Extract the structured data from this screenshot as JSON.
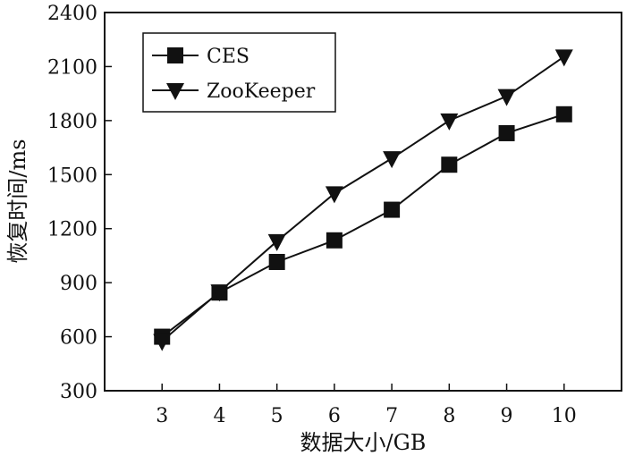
{
  "chart_data": {
    "type": "line",
    "xlabel": "数据大小/GB",
    "ylabel": "恢复时间/ms",
    "x": [
      3,
      4,
      5,
      6,
      7,
      8,
      9,
      10
    ],
    "xlim": [
      2,
      11
    ],
    "ylim": [
      300,
      2400
    ],
    "xticks": [
      "3",
      "4",
      "5",
      "6",
      "7",
      "8",
      "9",
      "10"
    ],
    "yticks": [
      "300",
      "600",
      "900",
      "1200",
      "1500",
      "1800",
      "2100",
      "2400"
    ],
    "ytick_values": [
      300,
      600,
      900,
      1200,
      1500,
      1800,
      2100,
      2400
    ],
    "grid": false,
    "legend_position": "top-left",
    "series": [
      {
        "name": "CES",
        "marker": "square",
        "color": "#111111",
        "values": [
          600,
          845,
          1015,
          1135,
          1305,
          1555,
          1730,
          1835
        ]
      },
      {
        "name": "ZooKeeper",
        "marker": "triangle-down",
        "color": "#111111",
        "values": [
          575,
          850,
          1130,
          1395,
          1590,
          1800,
          1935,
          2155
        ]
      }
    ]
  }
}
